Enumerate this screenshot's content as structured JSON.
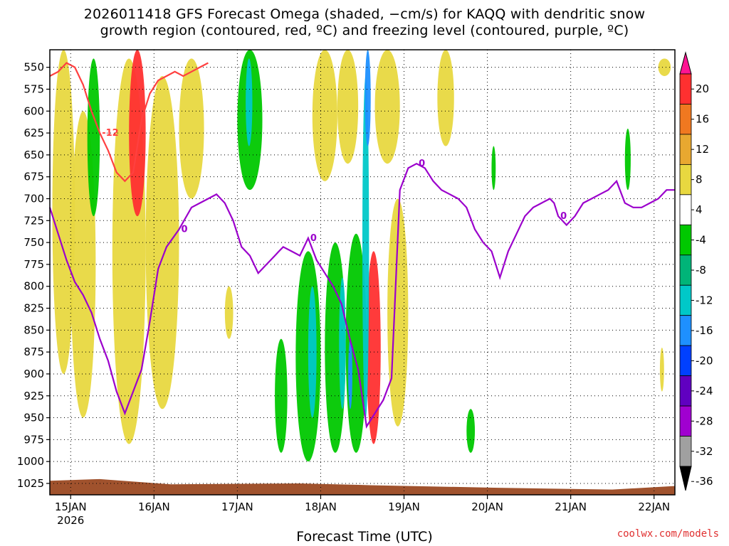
{
  "title_line1": "2026011418 GFS Forecast Omega (shaded, −cm/s) for KAQQ with dendritic snow",
  "title_line2": "growth region (contoured, red, ºC) and freezing level (contoured, purple, ºC)",
  "credit": "coolwx.com/models",
  "chart_data": {
    "type": "time-height",
    "title": "2026011418 GFS Forecast Omega (shaded, −cm/s) for KAQQ with dendritic snow growth region (contoured, red, ºC) and freezing level (contoured, purple, ºC)",
    "xlabel": "Forecast Time (UTC)",
    "ylabel": "",
    "x_tick_labels": [
      "15JAN",
      "16JAN",
      "17JAN",
      "18JAN",
      "19JAN",
      "20JAN",
      "21JAN",
      "22JAN"
    ],
    "x_year_label": "2026",
    "y_tick_labels": [
      550,
      575,
      600,
      625,
      650,
      675,
      700,
      725,
      750,
      775,
      800,
      825,
      850,
      875,
      900,
      925,
      950,
      975,
      1000,
      1025
    ],
    "y_axis_inverted": true,
    "grid": true,
    "colorbar": {
      "labels": [
        20,
        16,
        12,
        8,
        4,
        -4,
        -8,
        -12,
        -16,
        -20,
        -24,
        -28,
        -32,
        -36
      ],
      "colors": [
        "#ff1493",
        "#ff3030",
        "#f07820",
        "#e8a830",
        "#e8d840",
        "#ffffff",
        "#00c800",
        "#00b478",
        "#00c8c8",
        "#1e90ff",
        "#0040ff",
        "#6000c0",
        "#a000d0",
        "#a0a0a0",
        "#000000"
      ]
    },
    "contour_labels": [
      {
        "series": "freezing level",
        "label": "0"
      },
      {
        "series": "dendritic snow growth region",
        "label": "-12"
      }
    ],
    "freezing_level": {
      "color": "#9b00cc",
      "label": "0",
      "x_days": [
        14.75,
        14.85,
        14.95,
        15.05,
        15.15,
        15.25,
        15.35,
        15.45,
        15.55,
        15.65,
        15.75,
        15.85,
        15.95,
        16.05,
        16.15,
        16.3,
        16.45,
        16.55,
        16.65,
        16.75,
        16.85,
        16.95,
        17.05,
        17.15,
        17.25,
        17.35,
        17.45,
        17.5,
        17.55,
        17.65,
        17.75,
        17.85,
        17.95,
        18.05,
        18.15,
        18.25,
        18.35,
        18.45,
        18.55,
        18.65,
        18.75,
        18.85,
        18.95,
        19.05,
        19.15,
        19.25,
        19.35,
        19.45,
        19.55,
        19.65,
        19.75,
        19.85,
        19.95,
        20.05,
        20.15,
        20.25,
        20.35,
        20.45,
        20.55,
        20.65,
        20.75,
        20.8,
        20.85,
        20.95,
        21.05,
        21.15,
        21.25,
        21.35,
        21.45,
        21.55,
        21.65,
        21.75,
        21.85,
        21.95,
        22.05,
        22.15,
        22.25
      ],
      "p_hpa": [
        710,
        740,
        770,
        795,
        810,
        830,
        860,
        885,
        920,
        945,
        920,
        895,
        840,
        780,
        755,
        735,
        710,
        705,
        700,
        695,
        705,
        725,
        755,
        765,
        785,
        775,
        765,
        760,
        755,
        760,
        765,
        745,
        770,
        785,
        800,
        820,
        860,
        895,
        960,
        945,
        930,
        905,
        690,
        665,
        660,
        665,
        680,
        690,
        695,
        700,
        710,
        735,
        750,
        760,
        790,
        760,
        740,
        720,
        710,
        705,
        700,
        705,
        720,
        730,
        720,
        705,
        700,
        695,
        690,
        680,
        705,
        710,
        710,
        705,
        700,
        690,
        690
      ]
    },
    "dgz_m12": {
      "color": "#ff4040",
      "label": "-12",
      "x_days": [
        14.75,
        14.85,
        14.95,
        15.05,
        15.15,
        15.25,
        15.35,
        15.45,
        15.55,
        15.65,
        15.75,
        15.85,
        15.95,
        16.05,
        16.15,
        16.25,
        16.35,
        16.45,
        16.55,
        16.65
      ],
      "p_hpa": [
        560,
        555,
        545,
        550,
        570,
        600,
        625,
        645,
        670,
        680,
        670,
        610,
        580,
        565,
        560,
        555,
        560,
        555,
        550,
        545
      ]
    },
    "omega_regions": [
      {
        "name": "upward-weak",
        "value_range": [
          4,
          8
        ],
        "color": "#e8d840"
      },
      {
        "name": "upward-strong",
        "value_range": [
          8,
          20
        ],
        "color": "#ff3030"
      },
      {
        "name": "downward-weak",
        "value_range": [
          -8,
          -4
        ],
        "color": "#00c800"
      },
      {
        "name": "downward-moderate",
        "value_range": [
          -16,
          -8
        ],
        "color": "#00c8c8"
      },
      {
        "name": "downward-strong",
        "value_range": [
          -24,
          -16
        ],
        "color": "#1e90ff"
      }
    ],
    "ground_color": "#a0522d"
  }
}
